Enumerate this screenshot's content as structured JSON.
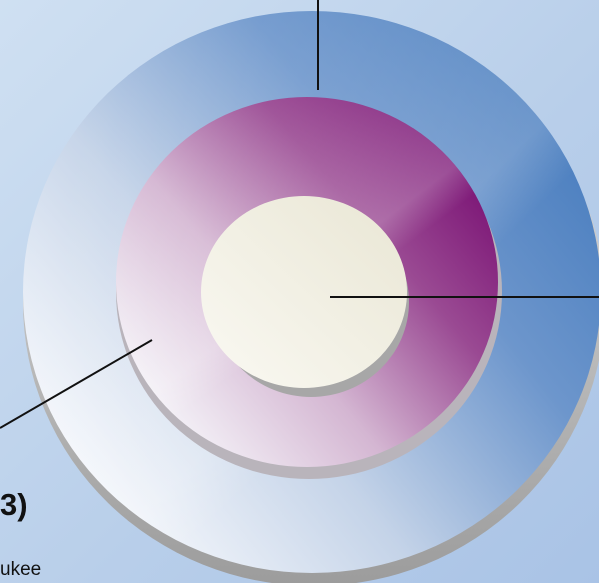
{
  "diagram": {
    "rings": [
      {
        "name": "outer-ring",
        "color_light": "#f3f6fb",
        "color_dark": "#4a7ebf"
      },
      {
        "name": "middle-ring",
        "color_light": "#f1eef4",
        "color_dark": "#7d1577"
      },
      {
        "name": "inner-disc",
        "color_light": "#f4f2e6",
        "color_dark": "#e7e4d2"
      }
    ],
    "labels": {
      "large_fragment": "3)",
      "small_fragment": "ukee"
    }
  }
}
